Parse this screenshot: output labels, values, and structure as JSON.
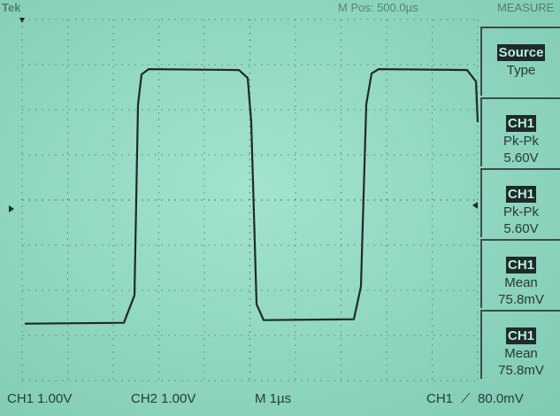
{
  "top": {
    "trigger_status": "Tek",
    "position": "M Pos: 500.0µs",
    "menu_title": "MEASURE"
  },
  "menu": [
    {
      "highlight": "Source",
      "line1": "Type",
      "line2": ""
    },
    {
      "highlight": "CH1",
      "line1": "Pk-Pk",
      "line2": "5.60V"
    },
    {
      "highlight": "CH1",
      "line1": "Pk-Pk",
      "line2": "5.60V"
    },
    {
      "highlight": "CH1",
      "line1": "Mean",
      "line2": "75.8mV"
    },
    {
      "highlight": "CH1",
      "line1": "Mean",
      "line2": "75.8mV"
    }
  ],
  "bottom": {
    "ch1_scale": "CH1 1.00V",
    "ch2_scale": "CH2 1.00V",
    "time_scale": "M 1µs",
    "trigger_channel": "CH1",
    "trigger_slope": "⟋",
    "trigger_level": "80.0mV"
  },
  "colors": {
    "trace": "#1f2a2a",
    "grid": "#4f6e68",
    "screen": "#8fd6c0"
  },
  "waveform": {
    "type": "square",
    "low_level_volts": -2.7,
    "high_level_volts": 2.9,
    "volts_per_div": 1.0,
    "time_per_div_us": 1.0
  }
}
